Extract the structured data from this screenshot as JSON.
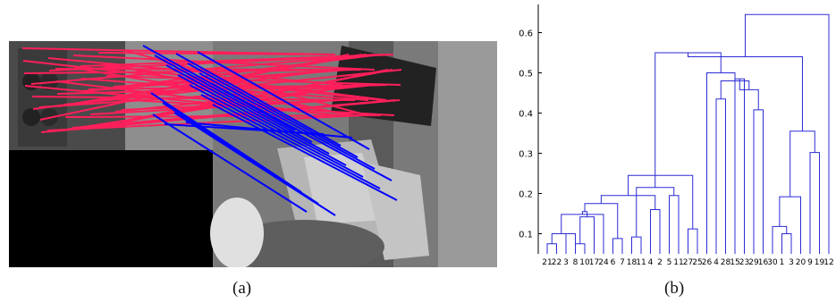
{
  "captions": {
    "a": "(a)",
    "b": "(b)"
  },
  "colors": {
    "match_red": "#ff1f5a",
    "match_blue": "#0000ff",
    "dendrogram": "#2b2bd6",
    "axis": "#000000",
    "image_bg": "#000000"
  },
  "chart_data": {
    "type": "dendrogram",
    "title": "",
    "xlabel": "",
    "ylabel": "",
    "ylim": [
      0.05,
      0.67
    ],
    "yticks": [
      0.1,
      0.2,
      0.3,
      0.4,
      0.5,
      0.6
    ],
    "ytick_labels": [
      "0.1",
      "0.2",
      "0.3",
      "0.4",
      "0.5",
      "0.6"
    ],
    "leaf_labels": [
      "21",
      "22",
      "3",
      "8",
      "10",
      "17",
      "24",
      "6",
      "7",
      "18",
      "11",
      "4",
      "2",
      "5",
      "11",
      "27",
      "25",
      "26",
      "4",
      "28",
      "15",
      "23",
      "29",
      "16",
      "30",
      "1",
      "3",
      "20",
      "9",
      "19",
      "12"
    ],
    "merge_heights": [
      0.075,
      0.1,
      0.075,
      0.1,
      0.142,
      0.148,
      0.088,
      0.155,
      0.092,
      0.175,
      0.16,
      0.195,
      0.112,
      0.195,
      0.215,
      0.245,
      0.435,
      0.485,
      0.408,
      0.458,
      0.48,
      0.5,
      0.55,
      0.1,
      0.118,
      0.192,
      0.302,
      0.355,
      0.54,
      0.645
    ]
  }
}
